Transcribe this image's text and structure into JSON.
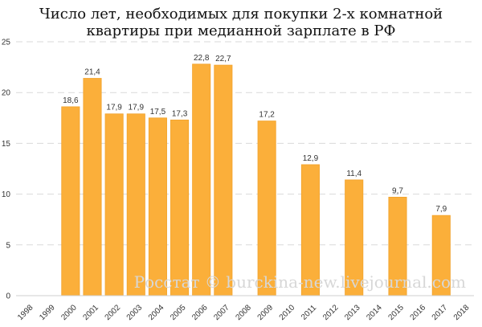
{
  "chart_data": {
    "type": "bar",
    "title_lines": [
      "Число лет, необходимых для покупки 2-х комнатной",
      "квартиры при медианной зарплате в РФ"
    ],
    "categories": [
      "1998",
      "1999",
      "2000",
      "2001",
      "2002",
      "2003",
      "2004",
      "2005",
      "2006",
      "2007",
      "2008",
      "2009",
      "2010",
      "2011",
      "2012",
      "2013",
      "2014",
      "2015",
      "2016",
      "2017",
      "2018"
    ],
    "values": [
      null,
      null,
      18.6,
      21.4,
      17.9,
      17.9,
      17.5,
      17.3,
      22.8,
      22.7,
      null,
      17.2,
      null,
      12.9,
      null,
      11.4,
      null,
      9.7,
      null,
      7.9,
      null
    ],
    "value_labels": [
      "",
      "",
      "18,6",
      "21,4",
      "17,9",
      "17,9",
      "17,5",
      "17,3",
      "22,8",
      "22,7",
      "",
      "17,2",
      "",
      "12,9",
      "",
      "11,4",
      "",
      "9,7",
      "",
      "7,9",
      ""
    ],
    "ylim": [
      0,
      25
    ],
    "yticks": [
      "0",
      "5",
      "10",
      "15",
      "20",
      "25"
    ],
    "grid": true,
    "bar_color": "#FBAF3A",
    "bar_edge_color": "#F1A22B",
    "watermark": "Росстат © burckina-new.livejournal.com"
  }
}
